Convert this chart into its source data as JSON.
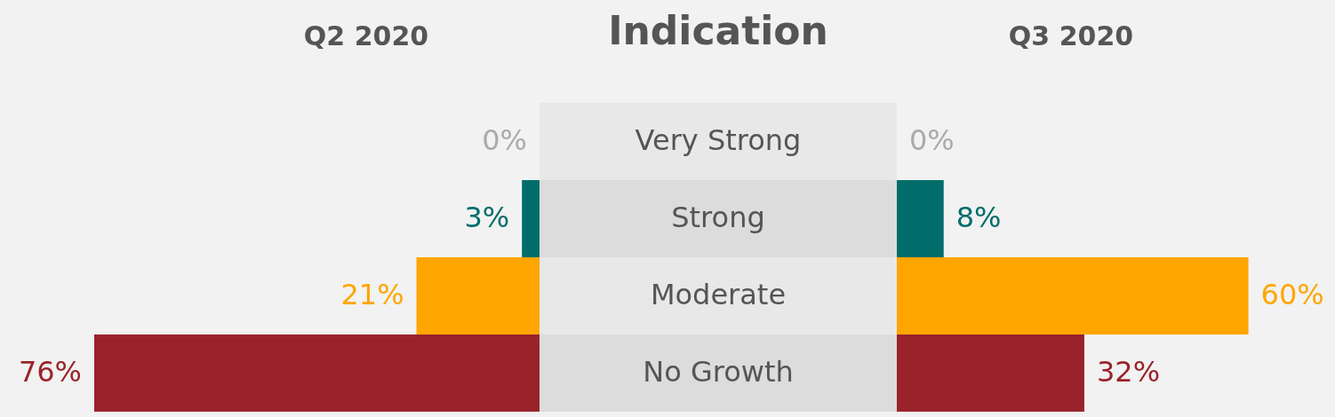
{
  "chart_data": [
    {
      "type": "bar",
      "orientation": "horizontal",
      "title": "Q2 2020",
      "ylabel": "Indication",
      "categories": [
        "Very Strong",
        "Strong",
        "Moderate",
        "No Growth"
      ],
      "values": [
        0,
        3,
        21,
        76
      ],
      "value_labels": [
        "0%",
        "3%",
        "21%",
        "76%"
      ],
      "colors": [
        "#aaaaaa",
        "#006d6a",
        "#ffa500",
        "#9a232b"
      ]
    },
    {
      "type": "bar",
      "orientation": "horizontal",
      "title": "Q3 2020",
      "values": [
        0,
        8,
        60,
        32
      ],
      "value_labels": [
        "0%",
        "8%",
        "60%",
        "32%"
      ],
      "colors": [
        "#aaaaaa",
        "#006d6a",
        "#ffa500",
        "#9a232b"
      ]
    }
  ]
}
